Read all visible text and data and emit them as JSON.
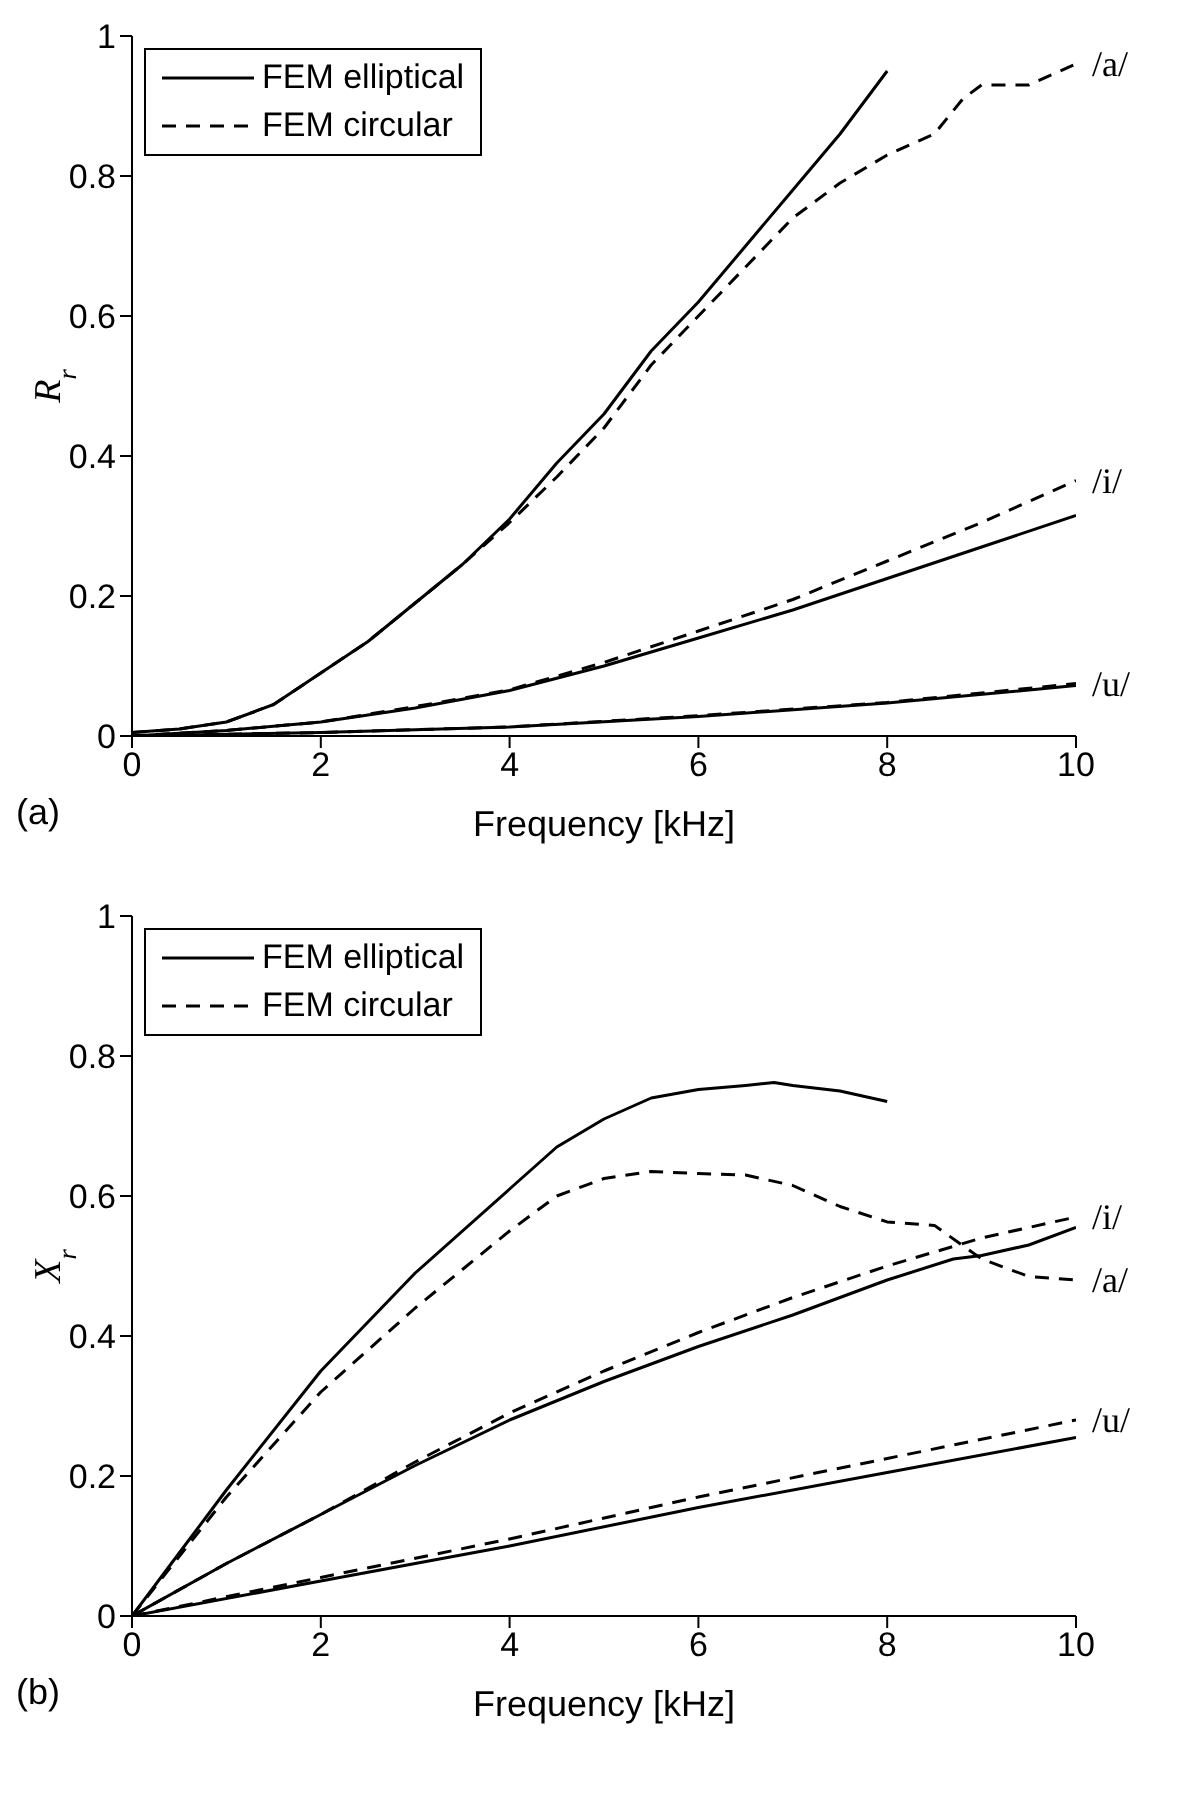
{
  "chart_data": [
    {
      "type": "line",
      "xlabel": "Frequency [kHz]",
      "ylabel": "R$_{r}$",
      "xlim": [
        0,
        10
      ],
      "ylim": [
        0,
        1
      ],
      "xticks": [
        0,
        2,
        4,
        6,
        8,
        10
      ],
      "yticks": [
        0,
        0.2,
        0.4,
        0.6,
        0.8,
        1
      ],
      "legend": "top left",
      "annotations": [
        "(a)",
        "/a/",
        "/i/",
        "/u/"
      ],
      "series": [
        {
          "name": "FEM elliptical",
          "color": "#000000",
          "line_style": "solid",
          "x": [
            0,
            0.5,
            1,
            1.5,
            2,
            2.5,
            3,
            3.5,
            4,
            4.5,
            5,
            5.5,
            6,
            6.5,
            7,
            7.5,
            8
          ],
          "values": [
            0.005,
            0.01,
            0.02,
            0.045,
            0.09,
            0.135,
            0.19,
            0.245,
            0.31,
            0.39,
            0.46,
            0.55,
            0.62,
            0.7,
            0.78,
            0.86,
            0.95
          ]
        },
        {
          "name": "FEM circular",
          "color": "#000000",
          "line_style": "dashed",
          "x": [
            0,
            0.5,
            1,
            1.5,
            2,
            2.5,
            3,
            3.5,
            4,
            4.5,
            5,
            5.5,
            6,
            6.5,
            7,
            7.5,
            8,
            8.5,
            8.8,
            9,
            9.5,
            10
          ],
          "values": [
            0.005,
            0.01,
            0.02,
            0.045,
            0.09,
            0.135,
            0.19,
            0.245,
            0.305,
            0.37,
            0.44,
            0.53,
            0.6,
            0.67,
            0.74,
            0.79,
            0.83,
            0.86,
            0.91,
            0.93,
            0.93,
            0.96
          ]
        },
        {
          "color": "#000000",
          "line_style": "solid",
          "x": [
            0,
            1,
            2,
            3,
            4,
            5,
            6,
            7,
            8,
            9,
            10
          ],
          "values": [
            0,
            0.008,
            0.02,
            0.04,
            0.065,
            0.1,
            0.14,
            0.18,
            0.225,
            0.27,
            0.315
          ]
        },
        {
          "color": "#000000",
          "line_style": "dashed",
          "x": [
            0,
            1,
            2,
            3,
            4,
            5,
            6,
            7,
            8,
            9,
            10
          ],
          "values": [
            0,
            0.008,
            0.02,
            0.042,
            0.066,
            0.105,
            0.15,
            0.195,
            0.25,
            0.305,
            0.365
          ]
        },
        {
          "color": "#000000",
          "line_style": "solid",
          "x": [
            0,
            2,
            4,
            6,
            8,
            10
          ],
          "values": [
            0,
            0.005,
            0.013,
            0.028,
            0.047,
            0.072
          ]
        },
        {
          "color": "#000000",
          "line_style": "dashed",
          "x": [
            0,
            2,
            4,
            6,
            8,
            10
          ],
          "values": [
            0,
            0.005,
            0.013,
            0.029,
            0.048,
            0.075
          ]
        }
      ]
    },
    {
      "type": "line",
      "xlabel": "Frequency [kHz]",
      "ylabel": "X$_{r}$",
      "xlim": [
        0,
        10
      ],
      "ylim": [
        0,
        1
      ],
      "xticks": [
        0,
        2,
        4,
        6,
        8,
        10
      ],
      "yticks": [
        0,
        0.2,
        0.4,
        0.6,
        0.8,
        1
      ],
      "legend": "top left",
      "annotations": [
        "(b)",
        "/a/",
        "/i/",
        "/u/"
      ],
      "series": [
        {
          "name": "FEM elliptical",
          "color": "#000000",
          "line_style": "solid",
          "x": [
            0,
            0.5,
            1,
            2,
            3,
            4,
            4.5,
            5,
            5.5,
            6,
            6.5,
            6.8,
            7,
            7.5,
            8
          ],
          "values": [
            0,
            0.09,
            0.18,
            0.35,
            0.49,
            0.61,
            0.67,
            0.71,
            0.74,
            0.752,
            0.758,
            0.762,
            0.758,
            0.75,
            0.735
          ]
        },
        {
          "name": "FEM circular",
          "color": "#000000",
          "line_style": "dashed",
          "x": [
            0,
            1,
            2,
            3,
            4,
            4.5,
            5,
            5.5,
            6,
            6.5,
            7,
            7.5,
            8,
            8.5,
            9,
            9.5,
            10
          ],
          "values": [
            0,
            0.17,
            0.32,
            0.44,
            0.55,
            0.6,
            0.625,
            0.635,
            0.632,
            0.63,
            0.615,
            0.585,
            0.563,
            0.558,
            0.51,
            0.485,
            0.48
          ]
        },
        {
          "color": "#000000",
          "line_style": "solid",
          "x": [
            0,
            1,
            2,
            3,
            4,
            5,
            6,
            7,
            8,
            8.7,
            9,
            9.5,
            10
          ],
          "values": [
            0,
            0.075,
            0.145,
            0.215,
            0.28,
            0.335,
            0.385,
            0.43,
            0.48,
            0.51,
            0.515,
            0.53,
            0.555
          ]
        },
        {
          "color": "#000000",
          "line_style": "dashed",
          "x": [
            0,
            1,
            2,
            3,
            4,
            5,
            6,
            7,
            8,
            9,
            10
          ],
          "values": [
            0,
            0.075,
            0.145,
            0.22,
            0.29,
            0.35,
            0.405,
            0.455,
            0.5,
            0.54,
            0.57
          ]
        },
        {
          "color": "#000000",
          "line_style": "solid",
          "x": [
            0,
            2,
            4,
            6,
            8,
            10
          ],
          "values": [
            0,
            0.05,
            0.1,
            0.155,
            0.205,
            0.255
          ]
        },
        {
          "color": "#000000",
          "line_style": "dashed",
          "x": [
            0,
            2,
            4,
            6,
            8,
            10
          ],
          "values": [
            0,
            0.055,
            0.11,
            0.17,
            0.225,
            0.28
          ]
        }
      ]
    }
  ]
}
